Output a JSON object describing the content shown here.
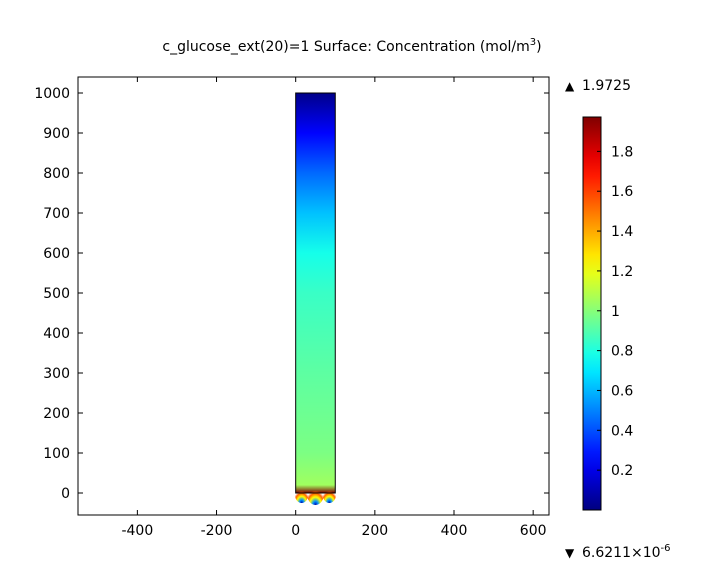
{
  "chart_data": {
    "type": "heatmap",
    "title": "c_glucose_ext(20)=1   Surface: Concentration (mol/m³)",
    "title_parts": {
      "main": "c_glucose_ext(20)=1   Surface: Concentration (mol/m",
      "superscript": "3",
      "end": ")"
    },
    "xlabel": "",
    "ylabel": "",
    "xlim": [
      -550,
      640
    ],
    "ylim": [
      -55,
      1040
    ],
    "x_ticks": [
      -400,
      -200,
      0,
      200,
      400,
      600
    ],
    "y_ticks": [
      0,
      100,
      200,
      300,
      400,
      500,
      600,
      700,
      800,
      900,
      1000
    ],
    "domain": {
      "x": [
        0,
        100
      ],
      "y": [
        0,
        1000
      ]
    },
    "concentration_profile": [
      {
        "y": 0,
        "value": 1.97
      },
      {
        "y": 20,
        "value": 1.05
      },
      {
        "y": 100,
        "value": 0.98
      },
      {
        "y": 300,
        "value": 0.92
      },
      {
        "y": 500,
        "value": 0.85
      },
      {
        "y": 600,
        "value": 0.78
      },
      {
        "y": 700,
        "value": 0.62
      },
      {
        "y": 800,
        "value": 0.45
      },
      {
        "y": 900,
        "value": 0.25
      },
      {
        "y": 1000,
        "value": 0.02
      }
    ],
    "colorbar": {
      "colormap": "jet",
      "max_label": "1.9725",
      "min_label_mantissa": "6.6211×10",
      "min_label_exponent": "-6",
      "min": 6.6211e-06,
      "max": 1.9725,
      "ticks": [
        "0.2",
        "0.4",
        "0.6",
        "0.8",
        "1",
        "1.2",
        "1.4",
        "1.6",
        "1.8"
      ],
      "tick_values": [
        0.2,
        0.4,
        0.6,
        0.8,
        1.0,
        1.2,
        1.4,
        1.6,
        1.8
      ]
    },
    "grid": false,
    "legend": "colorbar-right"
  }
}
